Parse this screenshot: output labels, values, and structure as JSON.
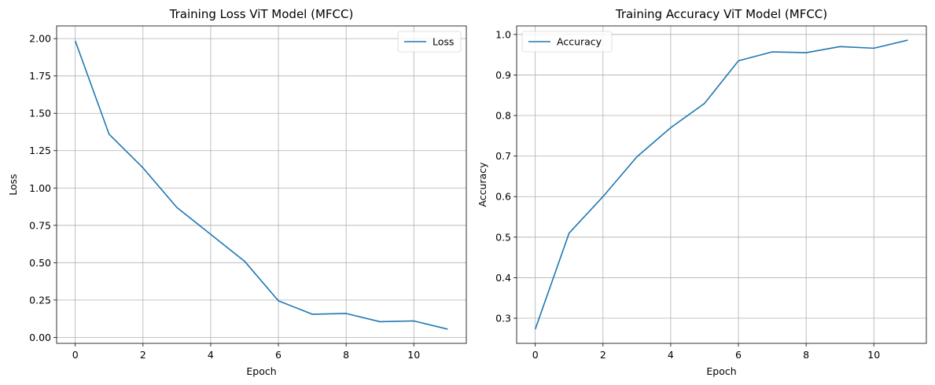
{
  "chart_data": [
    {
      "type": "line",
      "title": "Training Loss ViT Model (MFCC)",
      "xlabel": "Epoch",
      "ylabel": "Loss",
      "xlim": [
        -0.55,
        11.55
      ],
      "ylim": [
        -0.04,
        2.085
      ],
      "xticks": [
        0,
        2,
        4,
        6,
        8,
        10
      ],
      "yticks": [
        0.0,
        0.25,
        0.5,
        0.75,
        1.0,
        1.25,
        1.5,
        1.75,
        2.0
      ],
      "ytick_labels": [
        "0.00",
        "0.25",
        "0.50",
        "0.75",
        "1.00",
        "1.25",
        "1.50",
        "1.75",
        "2.00"
      ],
      "grid": true,
      "legend_position": "upper right",
      "line_color": "#1f77b4",
      "series": [
        {
          "name": "Loss",
          "x": [
            0,
            1,
            2,
            3,
            4,
            5,
            6,
            7,
            8,
            9,
            10,
            11
          ],
          "values": [
            1.985,
            1.36,
            1.135,
            0.87,
            0.69,
            0.51,
            0.245,
            0.155,
            0.16,
            0.105,
            0.11,
            0.055
          ]
        }
      ]
    },
    {
      "type": "line",
      "title": "Training Accuracy ViT Model (MFCC)",
      "xlabel": "Epoch",
      "ylabel": "Accuracy",
      "xlim": [
        -0.55,
        11.55
      ],
      "ylim": [
        0.238,
        1.021
      ],
      "xticks": [
        0,
        2,
        4,
        6,
        8,
        10
      ],
      "yticks": [
        0.3,
        0.4,
        0.5,
        0.6,
        0.7,
        0.8,
        0.9,
        1.0
      ],
      "ytick_labels": [
        "0.3",
        "0.4",
        "0.5",
        "0.6",
        "0.7",
        "0.8",
        "0.9",
        "1.0"
      ],
      "grid": true,
      "legend_position": "upper left",
      "line_color": "#1f77b4",
      "series": [
        {
          "name": "Accuracy",
          "x": [
            0,
            1,
            2,
            3,
            4,
            5,
            6,
            7,
            8,
            9,
            10,
            11
          ],
          "values": [
            0.273,
            0.51,
            0.6,
            0.698,
            0.77,
            0.83,
            0.935,
            0.957,
            0.955,
            0.97,
            0.966,
            0.986
          ]
        }
      ]
    }
  ]
}
